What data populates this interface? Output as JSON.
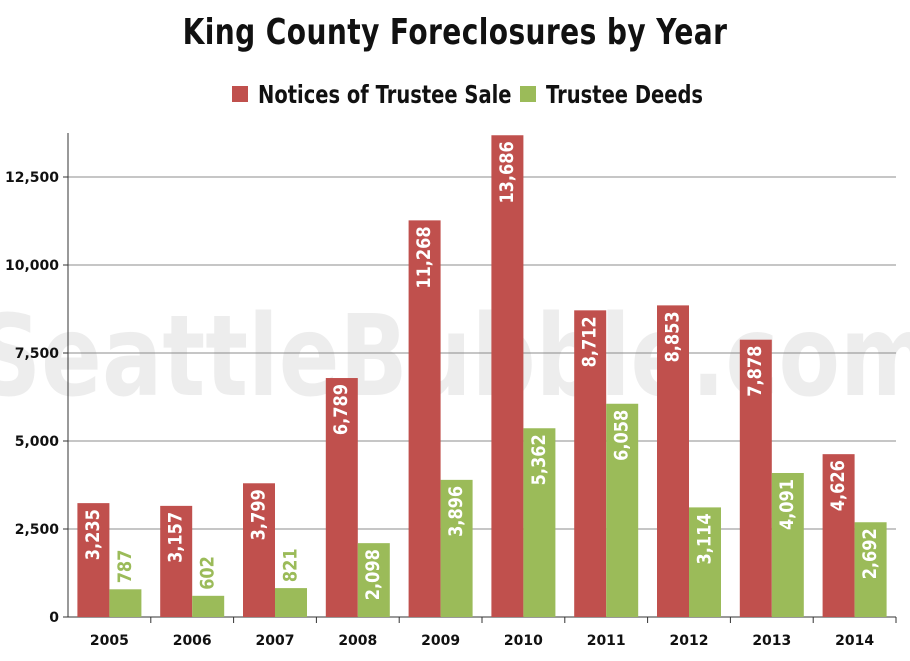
{
  "chart_data": {
    "type": "bar",
    "title": "King County Foreclosures by Year",
    "categories": [
      "2005",
      "2006",
      "2007",
      "2008",
      "2009",
      "2010",
      "2011",
      "2012",
      "2013",
      "2014"
    ],
    "series": [
      {
        "name": "Notices of Trustee Sale",
        "color": "#c0504d",
        "label_color": "#ffffff",
        "values": [
          3235,
          3157,
          3799,
          6789,
          11268,
          13686,
          8712,
          8853,
          7878,
          4626
        ],
        "labels": [
          "3,235",
          "3,157",
          "3,799",
          "6,789",
          "11,268",
          "13,686",
          "8,712",
          "8,853",
          "7,878",
          "4,626"
        ]
      },
      {
        "name": "Trustee Deeds",
        "color": "#9bbb59",
        "label_color": "#ffffff",
        "values": [
          787,
          602,
          821,
          2098,
          3896,
          5362,
          6058,
          3114,
          4091,
          2692
        ],
        "labels": [
          "787",
          "602",
          "821",
          "2,098",
          "3,896",
          "5,362",
          "6,058",
          "3,114",
          "4,091",
          "2,692"
        ]
      }
    ],
    "ylim": [
      0,
      13750
    ],
    "yticks": [
      0,
      2500,
      5000,
      7500,
      10000,
      12500
    ],
    "ytick_labels": [
      "0",
      "2,500",
      "5,000",
      "7,500",
      "10,000",
      "12,500"
    ],
    "xlabel": "",
    "ylabel": "",
    "grid": true,
    "legend": "top-center",
    "watermark": "SeattleBubble.com"
  }
}
